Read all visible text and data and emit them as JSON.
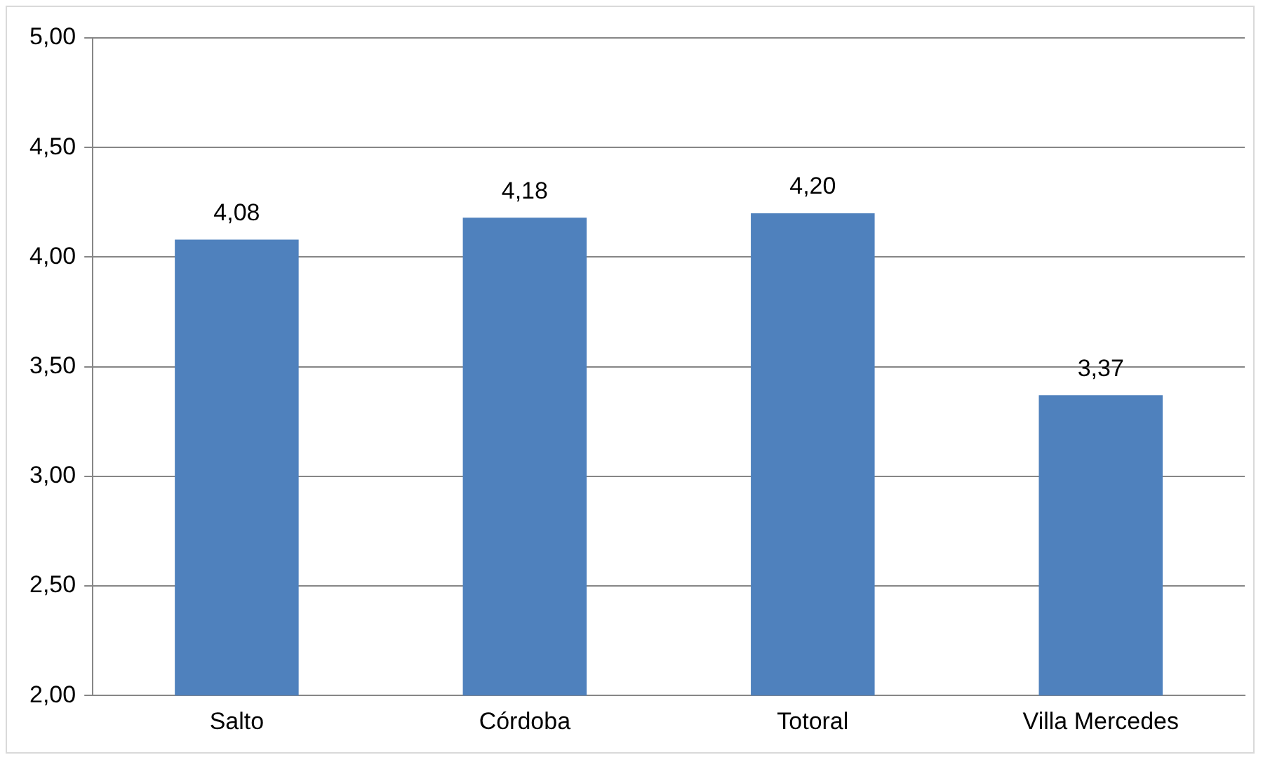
{
  "chart_data": {
    "type": "bar",
    "categories": [
      "Salto",
      "Córdoba",
      "Totoral",
      "Villa Mercedes"
    ],
    "values": [
      4.08,
      4.18,
      4.2,
      3.37
    ],
    "color": "#4f81bd",
    "value_labels": [
      "4,08",
      "4,18",
      "4,20",
      "3,37"
    ],
    "ylim": [
      2,
      5
    ],
    "yticks": [
      {
        "value": 2,
        "label": "2,00"
      },
      {
        "value": 2.5,
        "label": "2,50"
      },
      {
        "value": 3,
        "label": "3,00"
      },
      {
        "value": 3.5,
        "label": "3,50"
      },
      {
        "value": 4,
        "label": "4,00"
      },
      {
        "value": 4.5,
        "label": "4,50"
      },
      {
        "value": 5,
        "label": "5,00"
      }
    ],
    "grid": "y",
    "legend": false
  }
}
